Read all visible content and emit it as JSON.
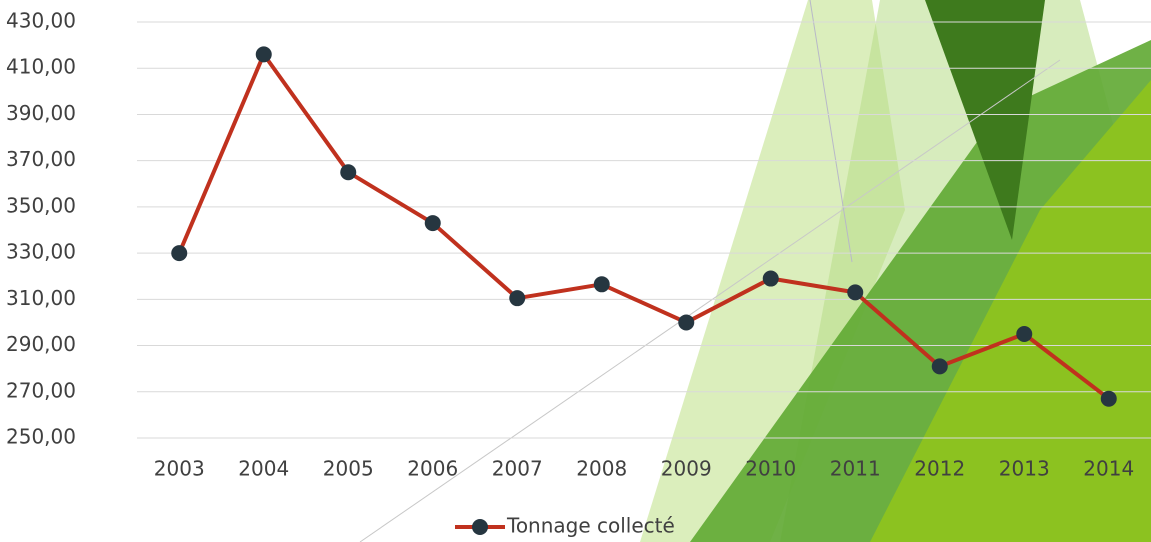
{
  "chart_data": {
    "type": "line",
    "categories": [
      "2003",
      "2004",
      "2005",
      "2006",
      "2007",
      "2008",
      "2009",
      "2010",
      "2011",
      "2012",
      "2013",
      "2014"
    ],
    "series": [
      {
        "name": "Tonnage collecté",
        "color": "#c0311e",
        "marker_color": "#263640",
        "values": [
          330,
          416,
          365,
          343,
          310.5,
          316.5,
          300,
          319,
          313,
          281,
          295,
          267
        ]
      }
    ],
    "ylim": [
      250,
      430
    ],
    "yticks": [
      {
        "value": 250,
        "label": "250,00"
      },
      {
        "value": 270,
        "label": "270,00"
      },
      {
        "value": 290,
        "label": "290,00"
      },
      {
        "value": 310,
        "label": "310,00"
      },
      {
        "value": 330,
        "label": "330,00"
      },
      {
        "value": 350,
        "label": "350,00"
      },
      {
        "value": 370,
        "label": "370,00"
      },
      {
        "value": 390,
        "label": "390,00"
      },
      {
        "value": 410,
        "label": "410,00"
      },
      {
        "value": 430,
        "label": "430,00"
      }
    ],
    "grid": true,
    "legend": "bottom"
  }
}
